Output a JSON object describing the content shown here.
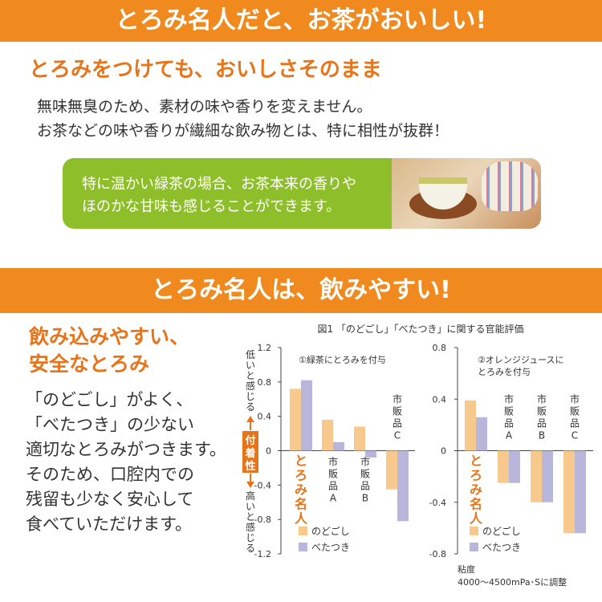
{
  "section1": {
    "banner": "とろみ名人だと、お茶がおいしい!",
    "subhead": "とろみをつけても、おいしさそのまま",
    "lines": [
      "無味無臭のため、素材の味や香りを変えません。",
      "お茶などの味や香りが繊細な飲み物とは、特に相性が抜群！"
    ],
    "callout": [
      "特に温かい緑茶の場合、お茶本来の香りや",
      "ほのかな甘味も感じることができます。"
    ]
  },
  "section2": {
    "banner": "とろみ名人は、飲みやすい!",
    "headline": [
      "飲み込みやすい、",
      "安全なとろみ"
    ],
    "lines": [
      "「のどごし」がよく、",
      "「べたつき」の少ない",
      "適切なとろみがつきます。",
      "そのため、口腔内での",
      "残留も少なく安心して",
      "食べていただけます。"
    ]
  },
  "colors": {
    "orange": "#f08a1e",
    "orange_text": "#e8741a",
    "green": "#8ebf2a",
    "series_nodogoshi": "#f7c98c",
    "series_betatsuki": "#b9b6dc"
  },
  "chart_data": {
    "title": "図1 「のどごし」「べたつき」に関する官能評価",
    "y_axis_label_top": "低いと感じる",
    "y_axis_label_mid": "付着性",
    "y_axis_label_bottom": "高いと感じる",
    "legend": [
      "のどごし",
      "べたつき"
    ],
    "note": [
      "粘度",
      "4000〜4500mPa･Sに調整"
    ],
    "panels": [
      {
        "type": "bar",
        "subtitle": "①緑茶にとろみを付与",
        "ylim": [
          -1.2,
          1.2
        ],
        "yticks": [
          1.2,
          0.8,
          0.4,
          0,
          -0.4,
          -0.8,
          -1.2
        ],
        "categories": [
          "とろみ名人",
          "市販品A",
          "市販品B",
          "市販品C"
        ],
        "series": [
          {
            "name": "のどごし",
            "values": [
              0.72,
              0.36,
              0.28,
              -0.45
            ]
          },
          {
            "name": "べたつき",
            "values": [
              0.82,
              0.1,
              -0.08,
              -0.82
            ]
          }
        ]
      },
      {
        "type": "bar",
        "subtitle": "②オレンジジュースにとろみを付与",
        "subtitle_lines": [
          "②オレンジジュースに",
          "とろみを付与"
        ],
        "ylim": [
          -0.8,
          0.8
        ],
        "yticks": [
          0.8,
          0.4,
          0,
          -0.4,
          -0.8
        ],
        "categories": [
          "とろみ名人",
          "市販品A",
          "市販品B",
          "市販品C"
        ],
        "series": [
          {
            "name": "のどごし",
            "values": [
              0.39,
              -0.25,
              -0.4,
              -0.64
            ]
          },
          {
            "name": "べたつき",
            "values": [
              0.26,
              -0.25,
              -0.4,
              -0.64
            ]
          }
        ]
      }
    ]
  }
}
